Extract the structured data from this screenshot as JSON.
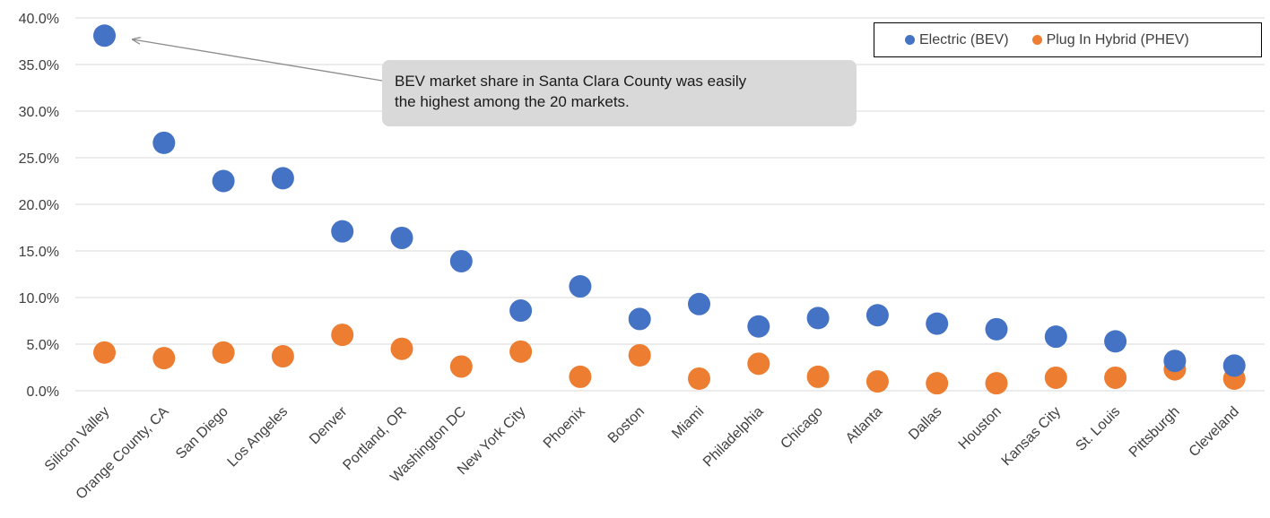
{
  "chart_data": {
    "type": "scatter",
    "categories": [
      "Silicon Valley",
      "Orange County, CA",
      "San Diego",
      "Los Angeles",
      "Denver",
      "Portland, OR",
      "Washington DC",
      "New York City",
      "Phoenix",
      "Boston",
      "Miami",
      "Philadelphia",
      "Chicago",
      "Atlanta",
      "Dallas",
      "Houston",
      "Kansas City",
      "St. Louis",
      "Pittsburgh",
      "Cleveland"
    ],
    "series": [
      {
        "name": "Electric (BEV)",
        "color": "#4472c4",
        "values": [
          38.1,
          26.6,
          22.5,
          22.8,
          17.1,
          16.4,
          13.9,
          8.6,
          11.2,
          7.7,
          9.3,
          6.9,
          7.8,
          8.1,
          7.2,
          6.6,
          5.8,
          5.3,
          3.2,
          2.7
        ]
      },
      {
        "name": "Plug In Hybrid (PHEV)",
        "color": "#ed7d31",
        "values": [
          4.1,
          3.5,
          4.1,
          3.7,
          6.0,
          4.5,
          2.6,
          4.2,
          1.5,
          3.8,
          1.3,
          2.9,
          1.5,
          1.0,
          0.8,
          0.8,
          1.4,
          1.4,
          2.3,
          1.3
        ]
      }
    ],
    "y_ticks": [
      "0.0%",
      "5.0%",
      "10.0%",
      "15.0%",
      "20.0%",
      "25.0%",
      "30.0%",
      "35.0%",
      "40.0%"
    ],
    "ylim": [
      0,
      40
    ],
    "grid": true,
    "legend_position": "top-right",
    "annotation": "BEV market share in Santa Clara County was easily the highest among the 20 markets.",
    "annotation_lines": [
      "BEV market share in Santa Clara County was easily",
      "the highest among the 20 markets."
    ],
    "annotation_target": "Silicon Valley",
    "grid_color": "#d9d9d9",
    "arrow_color": "#8c8c8c"
  }
}
